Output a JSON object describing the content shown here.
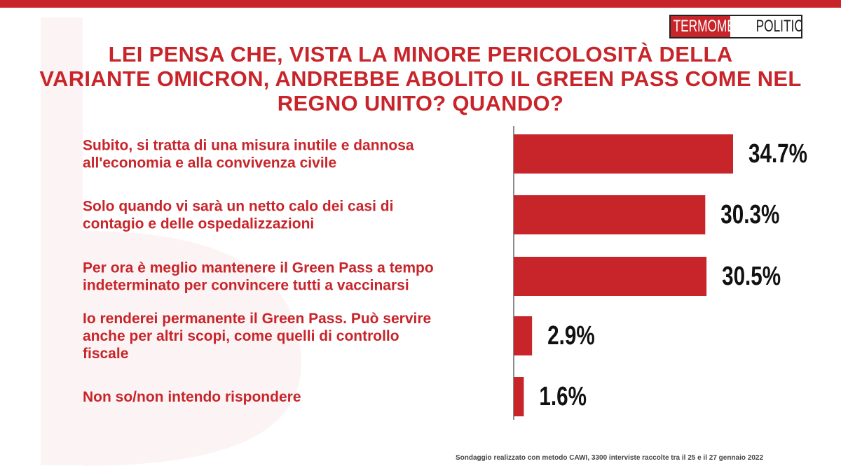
{
  "header": {
    "logo_part1": "TERMOMETRO",
    "logo_part2": "POLITICO",
    "accent_color": "#c8252b"
  },
  "chart_data": {
    "type": "bar",
    "orientation": "horizontal",
    "title_lines": [
      "LEI PENSA CHE, VISTA LA MINORE PERICOLOSITÀ DELLA",
      "VARIANTE OMICRON, ANDREBBE ABOLITO IL GREEN PASS COME NEL",
      "REGNO UNITO? QUANDO?"
    ],
    "categories": [
      [
        "Subito, si tratta di una misura inutile e dannosa",
        "all'economia e alla convivenza civile"
      ],
      [
        "Solo quando vi sarà  un netto calo dei casi di",
        "contagio e delle ospedalizzazioni"
      ],
      [
        "Per ora è meglio mantenere il Green Pass a tempo",
        "indeterminato per convincere tutti a vaccinarsi"
      ],
      [
        "Io renderei permanente il Green Pass. Può servire",
        "anche per altri scopi, come quelli di controllo",
        "fiscale"
      ],
      [
        "Non so/non intendo rispondere"
      ]
    ],
    "values": [
      34.7,
      30.3,
      30.5,
      2.9,
      1.6
    ],
    "value_labels": [
      "34.7%",
      "30.3%",
      "30.5%",
      "2.9%",
      "1.6%"
    ],
    "xlim": [
      0,
      34.7
    ],
    "bar_color": "#c8252b",
    "grid": false,
    "legend": "none"
  },
  "footer": {
    "note": "Sondaggio realizzato con metodo CAWI, 3300 interviste raccolte tra il 25 e il 27 gennaio 2022"
  }
}
